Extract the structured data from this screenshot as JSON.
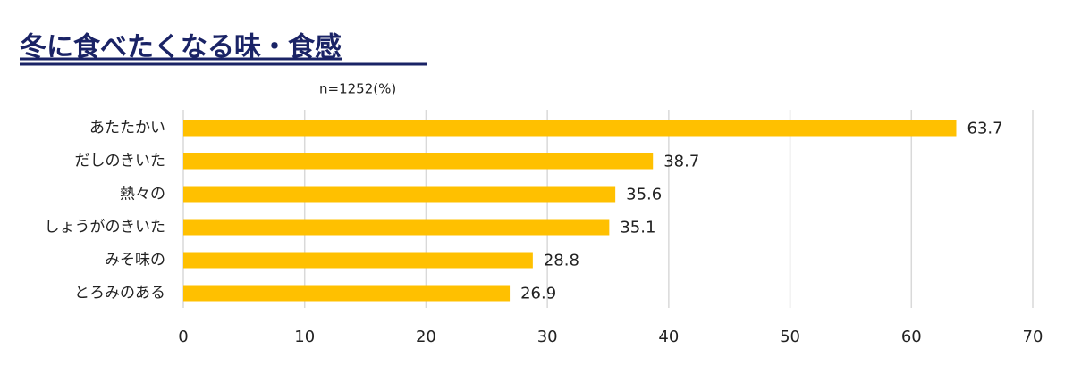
{
  "chart_data": {
    "type": "bar",
    "orientation": "horizontal",
    "title": "冬に食べたくなる味・食感",
    "subtitle": "n=1252(%)",
    "categories": [
      "あたたかい",
      "だしのきいた",
      "熱々の",
      "しょうがのきいた",
      "みそ味の",
      "とろみのある"
    ],
    "values": [
      63.7,
      38.7,
      35.6,
      35.1,
      28.8,
      26.9
    ],
    "color": "#ffc000",
    "xlim": [
      0,
      70
    ],
    "xticks": [
      0,
      10,
      20,
      30,
      40,
      50,
      60,
      70
    ],
    "grid": true
  }
}
